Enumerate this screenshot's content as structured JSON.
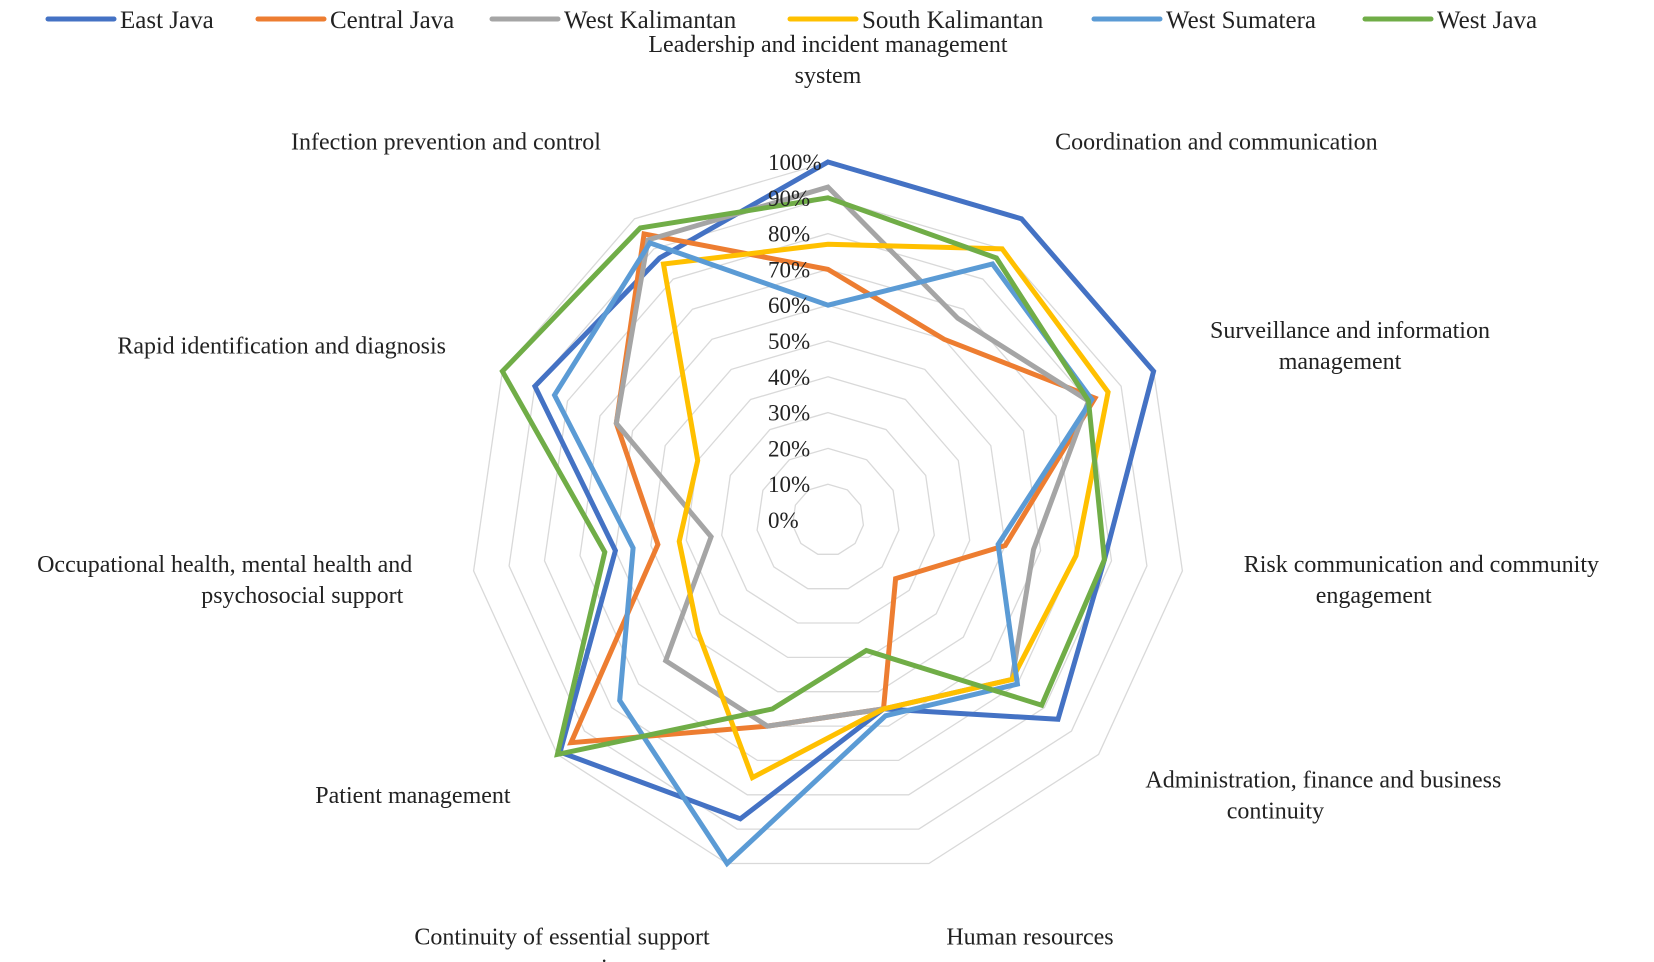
{
  "chart_data": {
    "type": "radar",
    "categories": [
      "Leadership and incident management system",
      "Coordination and communication",
      "Surveillance and information management",
      "Risk communication and community engagement",
      "Administration, finance and business continuity",
      "Human resources",
      "Continuity of essential support services",
      "Patient management",
      "Occupational health, mental health and psychosocial support",
      "Rapid identification and diagnosis",
      "Infection prevention and control"
    ],
    "category_label_lines": [
      [
        "Leadership and incident management",
        "system"
      ],
      [
        "Coordination and communication"
      ],
      [
        "Surveillance and information",
        "management"
      ],
      [
        "Risk communication and community",
        "engagement"
      ],
      [
        "Administration, finance and business",
        "continuity"
      ],
      [
        "Human resources"
      ],
      [
        "Continuity of essential support",
        "services"
      ],
      [
        "Patient management"
      ],
      [
        "Occupational health, mental health and",
        "psychosocial support"
      ],
      [
        "Rapid identification and diagnosis"
      ],
      [
        "Infection prevention and control"
      ]
    ],
    "ticks": [
      "0%",
      "10%",
      "20%",
      "30%",
      "40%",
      "50%",
      "60%",
      "70%",
      "80%",
      "90%",
      "100%"
    ],
    "rlim": [
      0,
      100
    ],
    "grid": true,
    "legend_position": "top",
    "series": [
      {
        "name": "East Java",
        "color": "#4472C4",
        "values": [
          100,
          100,
          100,
          78,
          85,
          55,
          87,
          99,
          60,
          90,
          87
        ]
      },
      {
        "name": "Central Java",
        "color": "#ED7D31",
        "values": [
          70,
          60,
          82,
          50,
          25,
          55,
          60,
          95,
          48,
          65,
          95
        ]
      },
      {
        "name": "West Kalimantan",
        "color": "#A5A5A5",
        "values": [
          93,
          67,
          80,
          58,
          68,
          55,
          60,
          60,
          33,
          65,
          93
        ]
      },
      {
        "name": "South Kalimantan",
        "color": "#FFC000",
        "values": [
          77,
          90,
          86,
          70,
          68,
          55,
          75,
          48,
          42,
          40,
          85
        ]
      },
      {
        "name": "West Sumatera",
        "color": "#5B9BD5",
        "values": [
          60,
          85,
          81,
          48,
          70,
          57,
          100,
          77,
          55,
          84,
          92
        ]
      },
      {
        "name": "West Java",
        "color": "#70AD47",
        "values": [
          90,
          87,
          80,
          78,
          79,
          38,
          55,
          100,
          63,
          100,
          97
        ]
      }
    ]
  }
}
